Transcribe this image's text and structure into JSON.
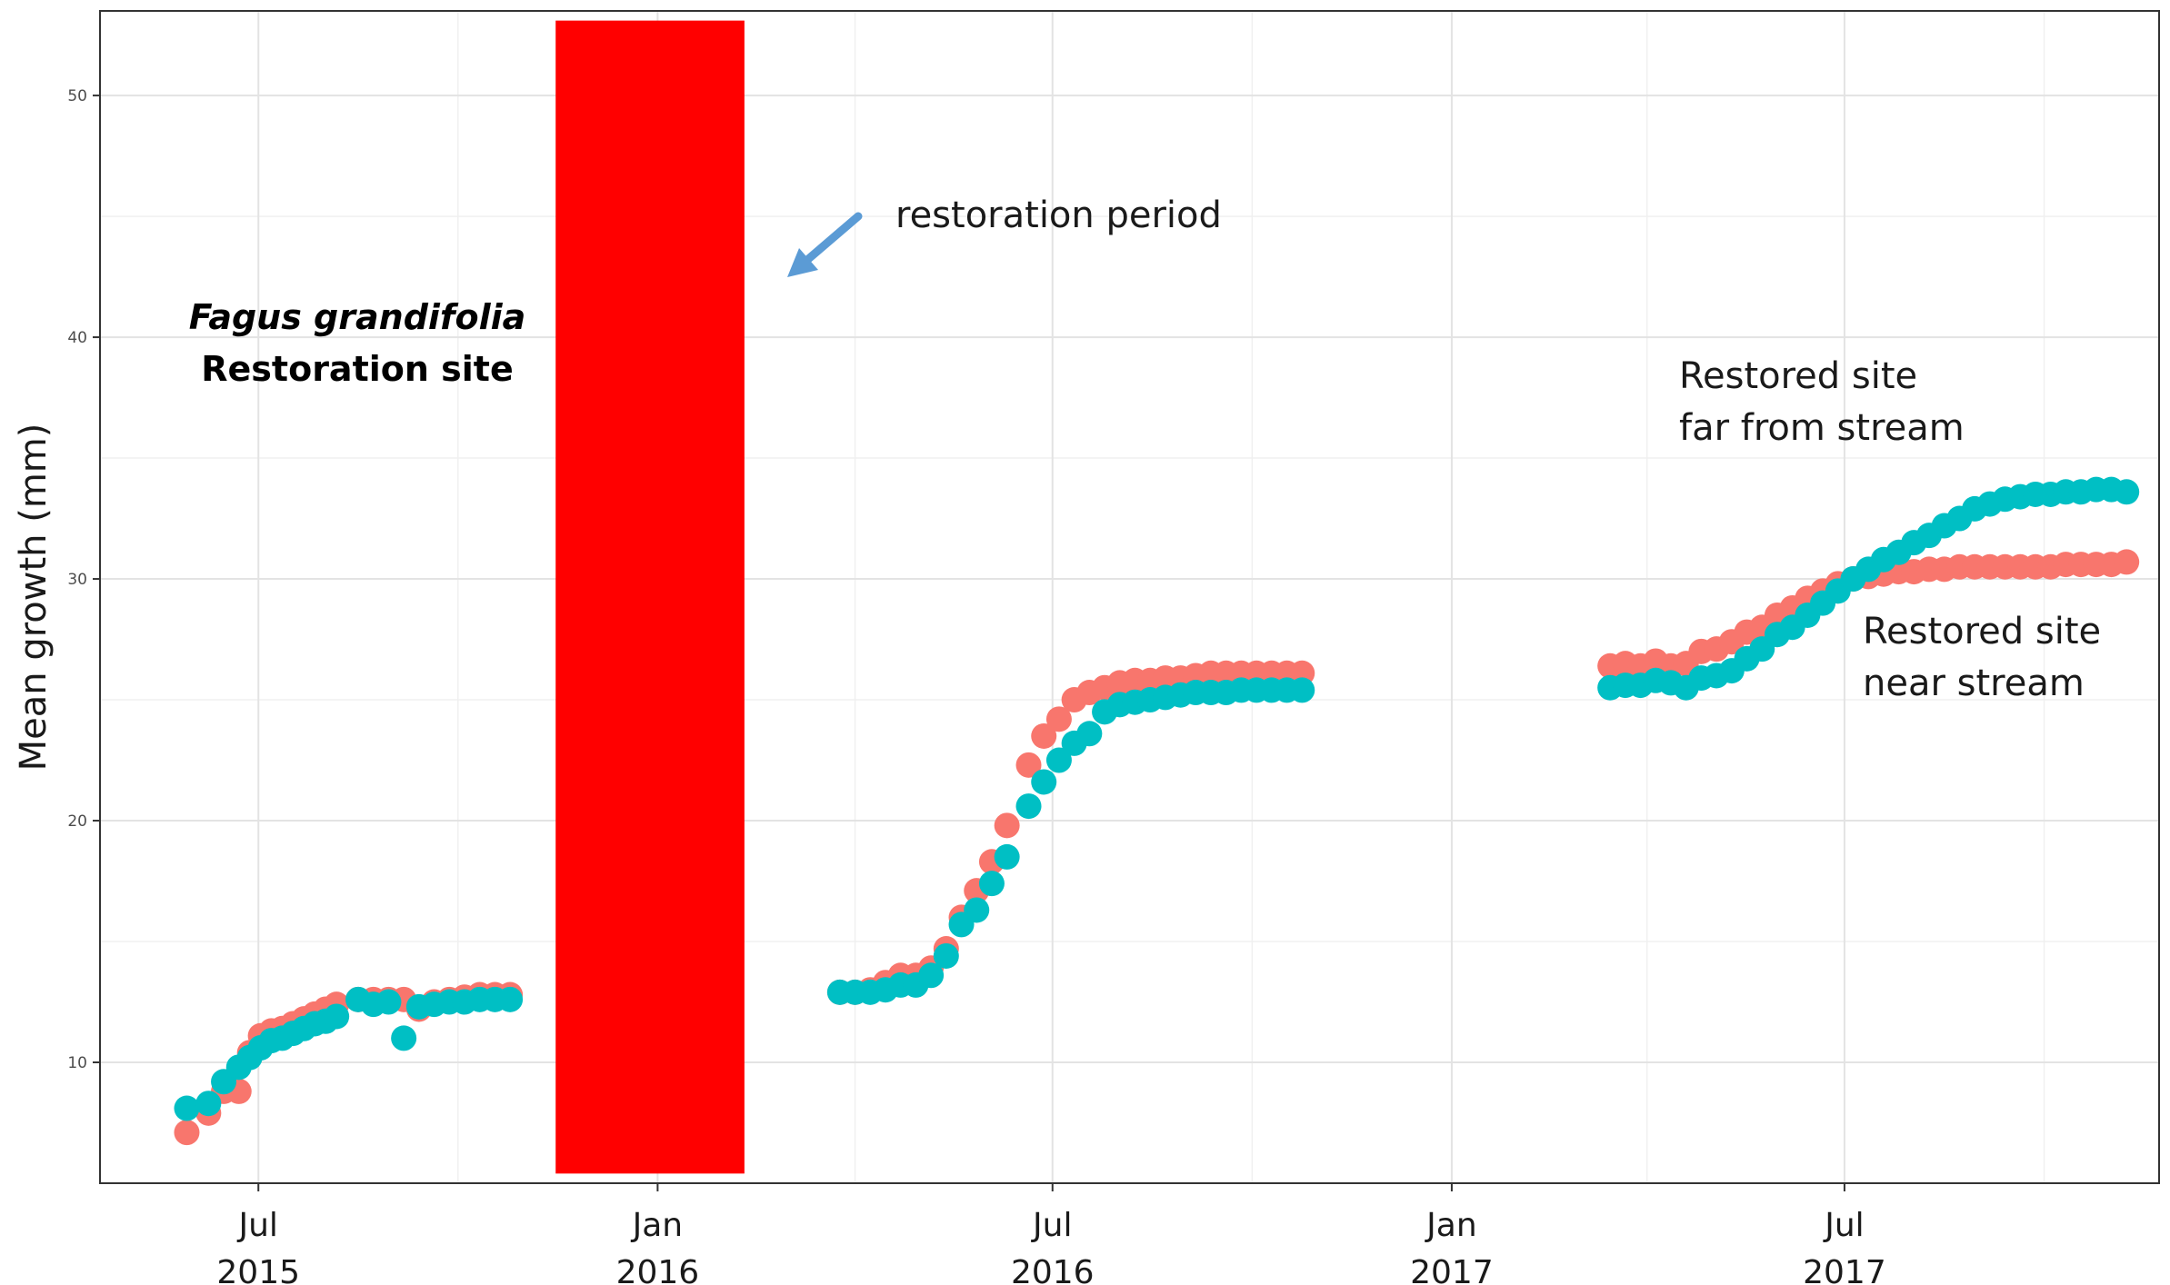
{
  "chart_data": {
    "type": "scatter",
    "title": "",
    "xlabel": "",
    "ylabel": "Mean growth (mm)",
    "grid": true,
    "legend": "none",
    "xlim": [
      "2015-04-19",
      "2017-11-23"
    ],
    "ylim": [
      5,
      53.5
    ],
    "y_ticks": [
      10,
      20,
      30,
      40,
      50
    ],
    "x_ticks": [
      {
        "date": "2015-07-01",
        "label1": "Jul",
        "label2": "2015"
      },
      {
        "date": "2016-01-01",
        "label1": "Jan",
        "label2": "2016"
      },
      {
        "date": "2016-07-01",
        "label1": "Jul",
        "label2": "2016"
      },
      {
        "date": "2017-01-01",
        "label1": "Jan",
        "label2": "2017"
      },
      {
        "date": "2017-07-01",
        "label1": "Jul",
        "label2": "2017"
      }
    ],
    "x_minor": [
      "2015-10-01",
      "2016-04-01",
      "2016-10-01",
      "2017-04-01",
      "2017-10-01"
    ],
    "restoration_period": {
      "start": "2015-11-15",
      "end": "2016-02-10",
      "color": "#ff0000"
    },
    "series": [
      {
        "color": "#f8766d",
        "points": [
          [
            "2015-05-29",
            7.1
          ],
          [
            "2015-06-08",
            7.9
          ],
          [
            "2015-06-15",
            8.8
          ],
          [
            "2015-06-22",
            8.8
          ],
          [
            "2015-06-27",
            10.4
          ],
          [
            "2015-07-02",
            11.1
          ],
          [
            "2015-07-07",
            11.3
          ],
          [
            "2015-07-12",
            11.4
          ],
          [
            "2015-07-17",
            11.6
          ],
          [
            "2015-07-22",
            11.8
          ],
          [
            "2015-07-27",
            12.0
          ],
          [
            "2015-08-01",
            12.2
          ],
          [
            "2015-08-06",
            12.4
          ],
          [
            "2015-08-16",
            12.6
          ],
          [
            "2015-08-23",
            12.6
          ],
          [
            "2015-08-30",
            12.6
          ],
          [
            "2015-09-06",
            12.6
          ],
          [
            "2015-09-13",
            12.2
          ],
          [
            "2015-09-20",
            12.5
          ],
          [
            "2015-09-27",
            12.6
          ],
          [
            "2015-10-04",
            12.7
          ],
          [
            "2015-10-11",
            12.8
          ],
          [
            "2015-10-18",
            12.8
          ],
          [
            "2015-10-25",
            12.8
          ],
          [
            "2016-03-25",
            12.9
          ],
          [
            "2016-04-01",
            12.9
          ],
          [
            "2016-04-08",
            13.0
          ],
          [
            "2016-04-15",
            13.3
          ],
          [
            "2016-04-22",
            13.6
          ],
          [
            "2016-04-29",
            13.6
          ],
          [
            "2016-05-06",
            13.9
          ],
          [
            "2016-05-13",
            14.7
          ],
          [
            "2016-05-20",
            16.0
          ],
          [
            "2016-05-27",
            17.1
          ],
          [
            "2016-06-03",
            18.3
          ],
          [
            "2016-06-10",
            19.8
          ],
          [
            "2016-06-20",
            22.3
          ],
          [
            "2016-06-27",
            23.5
          ],
          [
            "2016-07-04",
            24.2
          ],
          [
            "2016-07-11",
            25.0
          ],
          [
            "2016-07-18",
            25.3
          ],
          [
            "2016-07-25",
            25.5
          ],
          [
            "2016-08-01",
            25.7
          ],
          [
            "2016-08-08",
            25.8
          ],
          [
            "2016-08-15",
            25.8
          ],
          [
            "2016-08-22",
            25.9
          ],
          [
            "2016-08-29",
            25.9
          ],
          [
            "2016-09-05",
            26.0
          ],
          [
            "2016-09-12",
            26.1
          ],
          [
            "2016-09-19",
            26.1
          ],
          [
            "2016-09-26",
            26.1
          ],
          [
            "2016-10-03",
            26.1
          ],
          [
            "2016-10-10",
            26.1
          ],
          [
            "2016-10-17",
            26.1
          ],
          [
            "2016-10-24",
            26.1
          ],
          [
            "2017-03-15",
            26.4
          ],
          [
            "2017-03-22",
            26.5
          ],
          [
            "2017-03-29",
            26.4
          ],
          [
            "2017-04-05",
            26.6
          ],
          [
            "2017-04-12",
            26.4
          ],
          [
            "2017-04-19",
            26.5
          ],
          [
            "2017-04-26",
            27.0
          ],
          [
            "2017-05-03",
            27.1
          ],
          [
            "2017-05-10",
            27.4
          ],
          [
            "2017-05-17",
            27.8
          ],
          [
            "2017-05-24",
            28.0
          ],
          [
            "2017-05-31",
            28.5
          ],
          [
            "2017-06-07",
            28.8
          ],
          [
            "2017-06-14",
            29.2
          ],
          [
            "2017-06-21",
            29.5
          ],
          [
            "2017-06-28",
            29.8
          ],
          [
            "2017-07-05",
            30.0
          ],
          [
            "2017-07-12",
            30.1
          ],
          [
            "2017-07-19",
            30.2
          ],
          [
            "2017-07-26",
            30.3
          ],
          [
            "2017-08-02",
            30.3
          ],
          [
            "2017-08-09",
            30.4
          ],
          [
            "2017-08-16",
            30.4
          ],
          [
            "2017-08-23",
            30.5
          ],
          [
            "2017-08-30",
            30.5
          ],
          [
            "2017-09-06",
            30.5
          ],
          [
            "2017-09-13",
            30.5
          ],
          [
            "2017-09-20",
            30.5
          ],
          [
            "2017-09-27",
            30.5
          ],
          [
            "2017-10-04",
            30.5
          ],
          [
            "2017-10-11",
            30.6
          ],
          [
            "2017-10-18",
            30.6
          ],
          [
            "2017-10-25",
            30.6
          ],
          [
            "2017-11-01",
            30.6
          ],
          [
            "2017-11-08",
            30.7
          ]
        ]
      },
      {
        "color": "#00bfc4",
        "points": [
          [
            "2015-05-29",
            8.1
          ],
          [
            "2015-06-08",
            8.3
          ],
          [
            "2015-06-15",
            9.2
          ],
          [
            "2015-06-22",
            9.8
          ],
          [
            "2015-06-27",
            10.2
          ],
          [
            "2015-07-02",
            10.6
          ],
          [
            "2015-07-07",
            10.9
          ],
          [
            "2015-07-12",
            11.0
          ],
          [
            "2015-07-17",
            11.2
          ],
          [
            "2015-07-22",
            11.4
          ],
          [
            "2015-07-27",
            11.6
          ],
          [
            "2015-08-01",
            11.7
          ],
          [
            "2015-08-06",
            11.9
          ],
          [
            "2015-08-16",
            12.6
          ],
          [
            "2015-08-23",
            12.4
          ],
          [
            "2015-08-30",
            12.5
          ],
          [
            "2015-09-06",
            11.0
          ],
          [
            "2015-09-13",
            12.3
          ],
          [
            "2015-09-20",
            12.4
          ],
          [
            "2015-09-27",
            12.5
          ],
          [
            "2015-10-04",
            12.5
          ],
          [
            "2015-10-11",
            12.6
          ],
          [
            "2015-10-18",
            12.6
          ],
          [
            "2015-10-25",
            12.6
          ],
          [
            "2016-03-25",
            12.9
          ],
          [
            "2016-04-01",
            12.9
          ],
          [
            "2016-04-08",
            12.9
          ],
          [
            "2016-04-15",
            13.0
          ],
          [
            "2016-04-22",
            13.2
          ],
          [
            "2016-04-29",
            13.2
          ],
          [
            "2016-05-06",
            13.6
          ],
          [
            "2016-05-13",
            14.4
          ],
          [
            "2016-05-20",
            15.7
          ],
          [
            "2016-05-27",
            16.3
          ],
          [
            "2016-06-03",
            17.4
          ],
          [
            "2016-06-10",
            18.5
          ],
          [
            "2016-06-20",
            20.6
          ],
          [
            "2016-06-27",
            21.6
          ],
          [
            "2016-07-04",
            22.5
          ],
          [
            "2016-07-11",
            23.2
          ],
          [
            "2016-07-18",
            23.6
          ],
          [
            "2016-07-25",
            24.5
          ],
          [
            "2016-08-01",
            24.8
          ],
          [
            "2016-08-08",
            24.9
          ],
          [
            "2016-08-15",
            25.0
          ],
          [
            "2016-08-22",
            25.1
          ],
          [
            "2016-08-29",
            25.2
          ],
          [
            "2016-09-05",
            25.3
          ],
          [
            "2016-09-12",
            25.3
          ],
          [
            "2016-09-19",
            25.3
          ],
          [
            "2016-09-26",
            25.4
          ],
          [
            "2016-10-03",
            25.4
          ],
          [
            "2016-10-10",
            25.4
          ],
          [
            "2016-10-17",
            25.4
          ],
          [
            "2016-10-24",
            25.4
          ],
          [
            "2017-03-15",
            25.5
          ],
          [
            "2017-03-22",
            25.6
          ],
          [
            "2017-03-29",
            25.6
          ],
          [
            "2017-04-05",
            25.8
          ],
          [
            "2017-04-12",
            25.7
          ],
          [
            "2017-04-19",
            25.5
          ],
          [
            "2017-04-26",
            25.9
          ],
          [
            "2017-05-03",
            26.0
          ],
          [
            "2017-05-10",
            26.2
          ],
          [
            "2017-05-17",
            26.7
          ],
          [
            "2017-05-24",
            27.1
          ],
          [
            "2017-05-31",
            27.7
          ],
          [
            "2017-06-07",
            28.0
          ],
          [
            "2017-06-14",
            28.5
          ],
          [
            "2017-06-21",
            29.0
          ],
          [
            "2017-06-28",
            29.5
          ],
          [
            "2017-07-05",
            30.0
          ],
          [
            "2017-07-12",
            30.4
          ],
          [
            "2017-07-19",
            30.8
          ],
          [
            "2017-07-26",
            31.1
          ],
          [
            "2017-08-02",
            31.5
          ],
          [
            "2017-08-09",
            31.8
          ],
          [
            "2017-08-16",
            32.2
          ],
          [
            "2017-08-23",
            32.5
          ],
          [
            "2017-08-30",
            32.9
          ],
          [
            "2017-09-06",
            33.1
          ],
          [
            "2017-09-13",
            33.3
          ],
          [
            "2017-09-20",
            33.4
          ],
          [
            "2017-09-27",
            33.5
          ],
          [
            "2017-10-04",
            33.5
          ],
          [
            "2017-10-11",
            33.6
          ],
          [
            "2017-10-18",
            33.6
          ],
          [
            "2017-10-25",
            33.7
          ],
          [
            "2017-11-01",
            33.7
          ],
          [
            "2017-11-08",
            33.6
          ]
        ]
      }
    ],
    "annotations": {
      "species": "Fagus grandifolia",
      "site": "Restoration site",
      "restoration_label": "restoration period",
      "far_line1": "Restored site",
      "far_line2": "far from stream",
      "near_line1": "Restored site",
      "near_line2": "near stream",
      "arrow_color": "#5b9bd5"
    }
  }
}
